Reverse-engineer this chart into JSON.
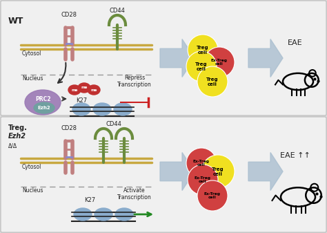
{
  "background_color": "#dcdcdc",
  "panel_bg": "#f0f0f0",
  "wt_label": "WT",
  "treg_label1": "Treg.",
  "treg_label2": "Ezh2",
  "treg_label3": "Δ/Δ",
  "cytosol_label": "Cytosol",
  "nucleus_label": "Nucleus",
  "cd28_label": "CD28",
  "cd44_label": "CD44",
  "repress_label": "Repress\nTranscription",
  "activate_label": "Activate\nTranscription",
  "k27_label": "K27",
  "prc2_label": "PRC2",
  "ezh2_label": "Ezh2",
  "eae_label": "EAE",
  "eae2_label": "EAE ↑↑",
  "colors": {
    "membrane_gold": "#c8a840",
    "cd28_color": "#c08080",
    "cd44_color": "#6b8c3e",
    "arrow_blue": "#aabfd0",
    "prc2_color": "#9b7ab5",
    "me_color": "#c03030",
    "nucleosome_color": "#8aaccc",
    "treg_yellow": "#f0e020",
    "ex_treg_red": "#d04040",
    "repress_color": "#cc2222",
    "activate_color": "#228822",
    "text_color": "#222222",
    "nucleus_dash": "#999999",
    "panel_border": "#aaaaaa"
  }
}
